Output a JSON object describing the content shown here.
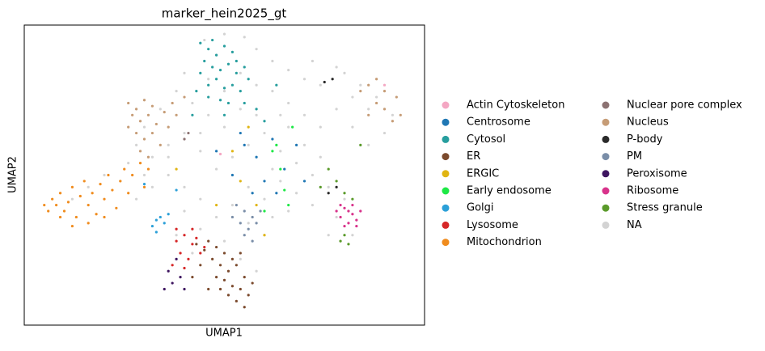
{
  "chart_data": {
    "type": "scatter",
    "title": "marker_hein2025_gt",
    "x_label": "UMAP1",
    "y_label": "UMAP2",
    "xlim": [
      0,
      100
    ],
    "ylim": [
      0,
      100
    ],
    "series": [
      {
        "name": "Actin Cytoskeleton",
        "color": "#f4a7c3",
        "x": [
          49,
          90
        ],
        "y": [
          57,
          80
        ]
      },
      {
        "name": "Centrosome",
        "color": "#1f77b4",
        "x": [
          55,
          58,
          62,
          65,
          60,
          54,
          68,
          52,
          57,
          63,
          48,
          70
        ],
        "y": [
          60,
          56,
          62,
          52,
          48,
          64,
          60,
          50,
          44,
          44,
          58,
          48
        ]
      },
      {
        "name": "Cytosol",
        "color": "#279e9e",
        "x": [
          44,
          46,
          48,
          50,
          52,
          45,
          47,
          49,
          51,
          53,
          55,
          44,
          46,
          48,
          50,
          52,
          54,
          43,
          46,
          49,
          51,
          55,
          53,
          47,
          56,
          58,
          60,
          42,
          63,
          50
        ],
        "y": [
          94,
          92,
          90,
          93,
          91,
          88,
          86,
          85,
          87,
          84,
          86,
          84,
          80,
          82,
          79,
          80,
          78,
          78,
          76,
          75,
          74,
          74,
          88,
          95,
          82,
          72,
          68,
          70,
          80,
          70
        ]
      },
      {
        "name": "ER",
        "color": "#7b4a2d",
        "x": [
          46,
          48,
          50,
          52,
          47,
          49,
          51,
          53,
          55,
          50,
          52,
          54,
          48,
          56,
          53,
          55,
          51,
          45,
          43,
          57,
          49,
          54,
          44,
          42,
          46
        ],
        "y": [
          28,
          26,
          24,
          22,
          22,
          20,
          18,
          20,
          16,
          15,
          13,
          12,
          16,
          10,
          8,
          6,
          10,
          25,
          27,
          14,
          12,
          24,
          20,
          16,
          12
        ]
      },
      {
        "name": "ERGIC",
        "color": "#e0b513",
        "x": [
          52,
          56,
          54,
          58,
          48,
          60,
          38
        ],
        "y": [
          58,
          66,
          48,
          40,
          40,
          30,
          52
        ]
      },
      {
        "name": "Early endosome",
        "color": "#1ee846",
        "x": [
          63,
          64,
          65,
          66,
          62,
          60,
          67
        ],
        "y": [
          60,
          52,
          45,
          40,
          58,
          38,
          66
        ]
      },
      {
        "name": "Golgi",
        "color": "#2ca0d8",
        "x": [
          32,
          33,
          34,
          35,
          36,
          33,
          38,
          30
        ],
        "y": [
          33,
          35,
          36,
          34,
          37,
          31,
          45,
          47
        ]
      },
      {
        "name": "Lysosome",
        "color": "#d62728",
        "x": [
          38,
          40,
          42,
          39,
          41,
          43,
          44,
          37,
          40,
          42,
          45,
          38
        ],
        "y": [
          28,
          30,
          27,
          24,
          22,
          29,
          24,
          20,
          19,
          32,
          26,
          32
        ]
      },
      {
        "name": "Mitochondrion",
        "color": "#f08c1e",
        "x": [
          5,
          6,
          7,
          8,
          9,
          10,
          11,
          12,
          13,
          14,
          15,
          16,
          17,
          18,
          19,
          20,
          21,
          22,
          23,
          24,
          25,
          26,
          27,
          29,
          30,
          31,
          12,
          16,
          9,
          20
        ],
        "y": [
          40,
          38,
          42,
          40,
          44,
          38,
          41,
          46,
          36,
          43,
          48,
          40,
          44,
          37,
          47,
          42,
          50,
          45,
          39,
          48,
          52,
          44,
          50,
          54,
          46,
          52,
          33,
          34,
          36,
          36
        ]
      },
      {
        "name": "Nuclear pore complex",
        "color": "#8c7272",
        "x": [
          41,
          40
        ],
        "y": [
          64,
          62
        ]
      },
      {
        "name": "Nucleus",
        "color": "#c69c76",
        "x": [
          26,
          28,
          30,
          32,
          27,
          29,
          31,
          33,
          35,
          37,
          26,
          28,
          30,
          32,
          34,
          36,
          38,
          29,
          31,
          40,
          84,
          86,
          88,
          90,
          92,
          94,
          86,
          90,
          93,
          88
        ],
        "y": [
          74,
          72,
          75,
          73,
          70,
          68,
          70,
          67,
          71,
          74,
          66,
          64,
          62,
          64,
          60,
          66,
          70,
          58,
          56,
          76,
          78,
          80,
          74,
          72,
          68,
          70,
          70,
          78,
          76,
          82
        ]
      },
      {
        "name": "P-body",
        "color": "#2a2a2a",
        "x": [
          75,
          77,
          78,
          76
        ],
        "y": [
          81,
          82,
          46,
          44
        ]
      },
      {
        "name": "PM",
        "color": "#7a8ea8",
        "x": [
          53,
          55,
          57,
          54,
          56,
          58,
          52,
          59,
          55,
          57
        ],
        "y": [
          40,
          38,
          36,
          34,
          32,
          34,
          36,
          38,
          30,
          28
        ]
      },
      {
        "name": "Peroxisome",
        "color": "#3e1560",
        "x": [
          36,
          37,
          39,
          35,
          40,
          38
        ],
        "y": [
          18,
          14,
          16,
          12,
          12,
          22
        ]
      },
      {
        "name": "Ribosome",
        "color": "#d8338b",
        "x": [
          78,
          79,
          80,
          81,
          82,
          83,
          84,
          80,
          82,
          79,
          83,
          81
        ],
        "y": [
          38,
          36,
          39,
          34,
          37,
          35,
          38,
          33,
          40,
          40,
          33,
          38
        ]
      },
      {
        "name": "Stress granule",
        "color": "#5a9a2a",
        "x": [
          76,
          78,
          80,
          82,
          79,
          81,
          84,
          74,
          80
        ],
        "y": [
          52,
          48,
          44,
          42,
          28,
          27,
          60,
          46,
          30
        ]
      },
      {
        "name": "NA",
        "color": "#d3d3d3",
        "x": [
          45,
          50,
          55,
          48,
          58,
          62,
          66,
          70,
          74,
          78,
          72,
          80,
          84,
          88,
          92,
          90,
          86,
          82,
          78,
          74,
          70,
          66,
          62,
          58,
          54,
          50,
          46,
          42,
          38,
          34,
          30,
          28,
          32,
          36,
          40,
          44,
          48,
          52,
          56,
          60,
          64,
          68,
          72,
          76,
          80,
          78,
          82,
          76,
          72,
          68,
          64,
          60,
          56,
          52,
          48,
          44,
          40,
          36,
          32,
          28,
          24,
          20,
          16,
          12,
          40,
          44,
          50,
          56,
          60,
          38,
          42,
          54,
          58,
          36,
          62,
          66,
          70,
          74,
          54,
          46,
          40,
          64,
          58,
          50,
          44,
          86,
          82,
          30,
          26,
          62,
          66
        ],
        "y": [
          95,
          97,
          96,
          90,
          92,
          88,
          85,
          82,
          80,
          86,
          88,
          84,
          80,
          76,
          70,
          64,
          60,
          66,
          72,
          66,
          70,
          74,
          78,
          80,
          72,
          66,
          70,
          74,
          78,
          72,
          66,
          60,
          56,
          60,
          64,
          58,
          52,
          56,
          60,
          64,
          58,
          54,
          50,
          46,
          42,
          36,
          30,
          30,
          40,
          44,
          48,
          42,
          46,
          40,
          36,
          42,
          46,
          50,
          46,
          42,
          48,
          50,
          46,
          42,
          38,
          32,
          28,
          34,
          30,
          30,
          24,
          22,
          18,
          56,
          52,
          66,
          60,
          56,
          84,
          82,
          84,
          70,
          70,
          78,
          64,
          72,
          76,
          50,
          54,
          36,
          38
        ]
      }
    ]
  }
}
